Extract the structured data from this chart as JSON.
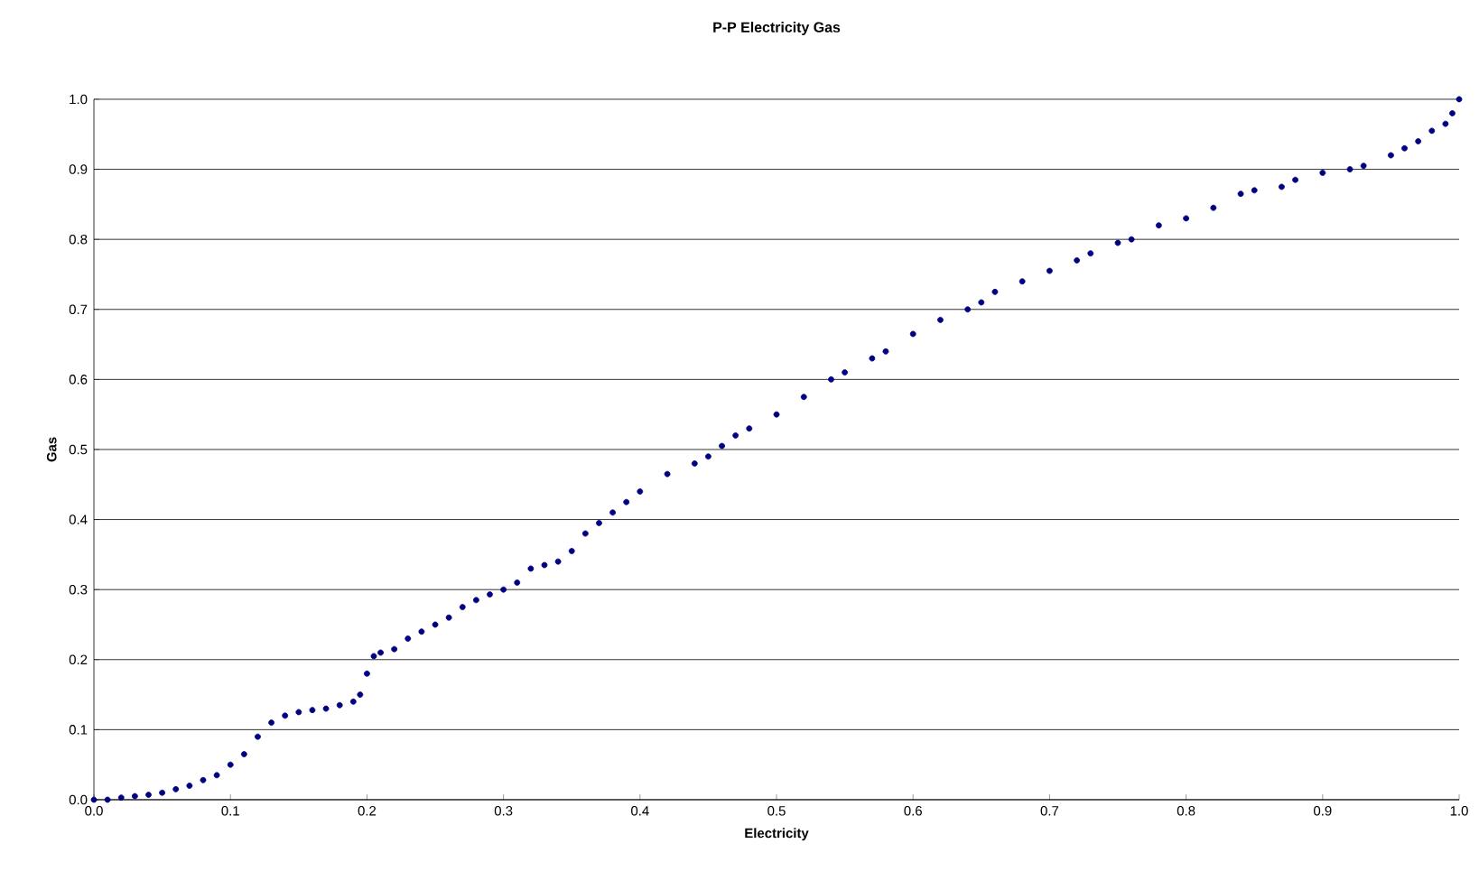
{
  "chart_data": {
    "type": "scatter",
    "title": "P-P Electricity Gas",
    "xlabel": "Electricity",
    "ylabel": "Gas",
    "x": [
      0.0,
      0.01,
      0.02,
      0.03,
      0.04,
      0.05,
      0.06,
      0.07,
      0.08,
      0.09,
      0.1,
      0.11,
      0.12,
      0.13,
      0.14,
      0.15,
      0.16,
      0.17,
      0.18,
      0.19,
      0.195,
      0.2,
      0.205,
      0.21,
      0.22,
      0.23,
      0.24,
      0.25,
      0.26,
      0.27,
      0.28,
      0.29,
      0.3,
      0.31,
      0.32,
      0.33,
      0.34,
      0.35,
      0.36,
      0.37,
      0.38,
      0.39,
      0.4,
      0.42,
      0.44,
      0.45,
      0.46,
      0.47,
      0.48,
      0.5,
      0.52,
      0.54,
      0.55,
      0.57,
      0.58,
      0.6,
      0.62,
      0.64,
      0.65,
      0.66,
      0.68,
      0.7,
      0.72,
      0.73,
      0.75,
      0.76,
      0.78,
      0.8,
      0.82,
      0.84,
      0.85,
      0.87,
      0.88,
      0.9,
      0.92,
      0.93,
      0.95,
      0.96,
      0.97,
      0.98,
      0.99,
      0.995,
      1.0
    ],
    "values": [
      0.0,
      0.0,
      0.003,
      0.005,
      0.007,
      0.01,
      0.015,
      0.02,
      0.028,
      0.035,
      0.05,
      0.065,
      0.09,
      0.11,
      0.12,
      0.125,
      0.128,
      0.13,
      0.135,
      0.14,
      0.15,
      0.18,
      0.205,
      0.21,
      0.215,
      0.23,
      0.24,
      0.25,
      0.26,
      0.275,
      0.285,
      0.293,
      0.3,
      0.31,
      0.33,
      0.335,
      0.34,
      0.355,
      0.38,
      0.395,
      0.41,
      0.425,
      0.44,
      0.465,
      0.48,
      0.49,
      0.505,
      0.52,
      0.53,
      0.55,
      0.575,
      0.6,
      0.61,
      0.63,
      0.64,
      0.665,
      0.685,
      0.7,
      0.71,
      0.725,
      0.74,
      0.755,
      0.77,
      0.78,
      0.795,
      0.8,
      0.82,
      0.83,
      0.845,
      0.865,
      0.87,
      0.875,
      0.885,
      0.895,
      0.9,
      0.905,
      0.92,
      0.93,
      0.94,
      0.955,
      0.965,
      0.98,
      1.0
    ],
    "color": "#000080",
    "marker": "circle",
    "grid": "y",
    "xlim": [
      0,
      1
    ],
    "ylim": [
      0,
      1
    ],
    "xticks": [
      {
        "value": 0,
        "label": "0.0"
      },
      {
        "value": 0.1,
        "label": "0.1"
      },
      {
        "value": 0.2,
        "label": "0.2"
      },
      {
        "value": 0.3,
        "label": "0.3"
      },
      {
        "value": 0.4,
        "label": "0.4"
      },
      {
        "value": 0.5,
        "label": "0.5"
      },
      {
        "value": 0.6,
        "label": "0.6"
      },
      {
        "value": 0.7,
        "label": "0.7"
      },
      {
        "value": 0.8,
        "label": "0.8"
      },
      {
        "value": 0.9,
        "label": "0.9"
      },
      {
        "value": 1,
        "label": "1.0"
      }
    ],
    "yticks": [
      {
        "value": 0,
        "label": "0.0"
      },
      {
        "value": 0.1,
        "label": "0.1"
      },
      {
        "value": 0.2,
        "label": "0.2"
      },
      {
        "value": 0.3,
        "label": "0.3"
      },
      {
        "value": 0.4,
        "label": "0.4"
      },
      {
        "value": 0.5,
        "label": "0.5"
      },
      {
        "value": 0.6,
        "label": "0.6"
      },
      {
        "value": 0.7,
        "label": "0.7"
      },
      {
        "value": 0.8,
        "label": "0.8"
      },
      {
        "value": 0.9,
        "label": "0.9"
      },
      {
        "value": 1,
        "label": "1.0"
      }
    ]
  }
}
